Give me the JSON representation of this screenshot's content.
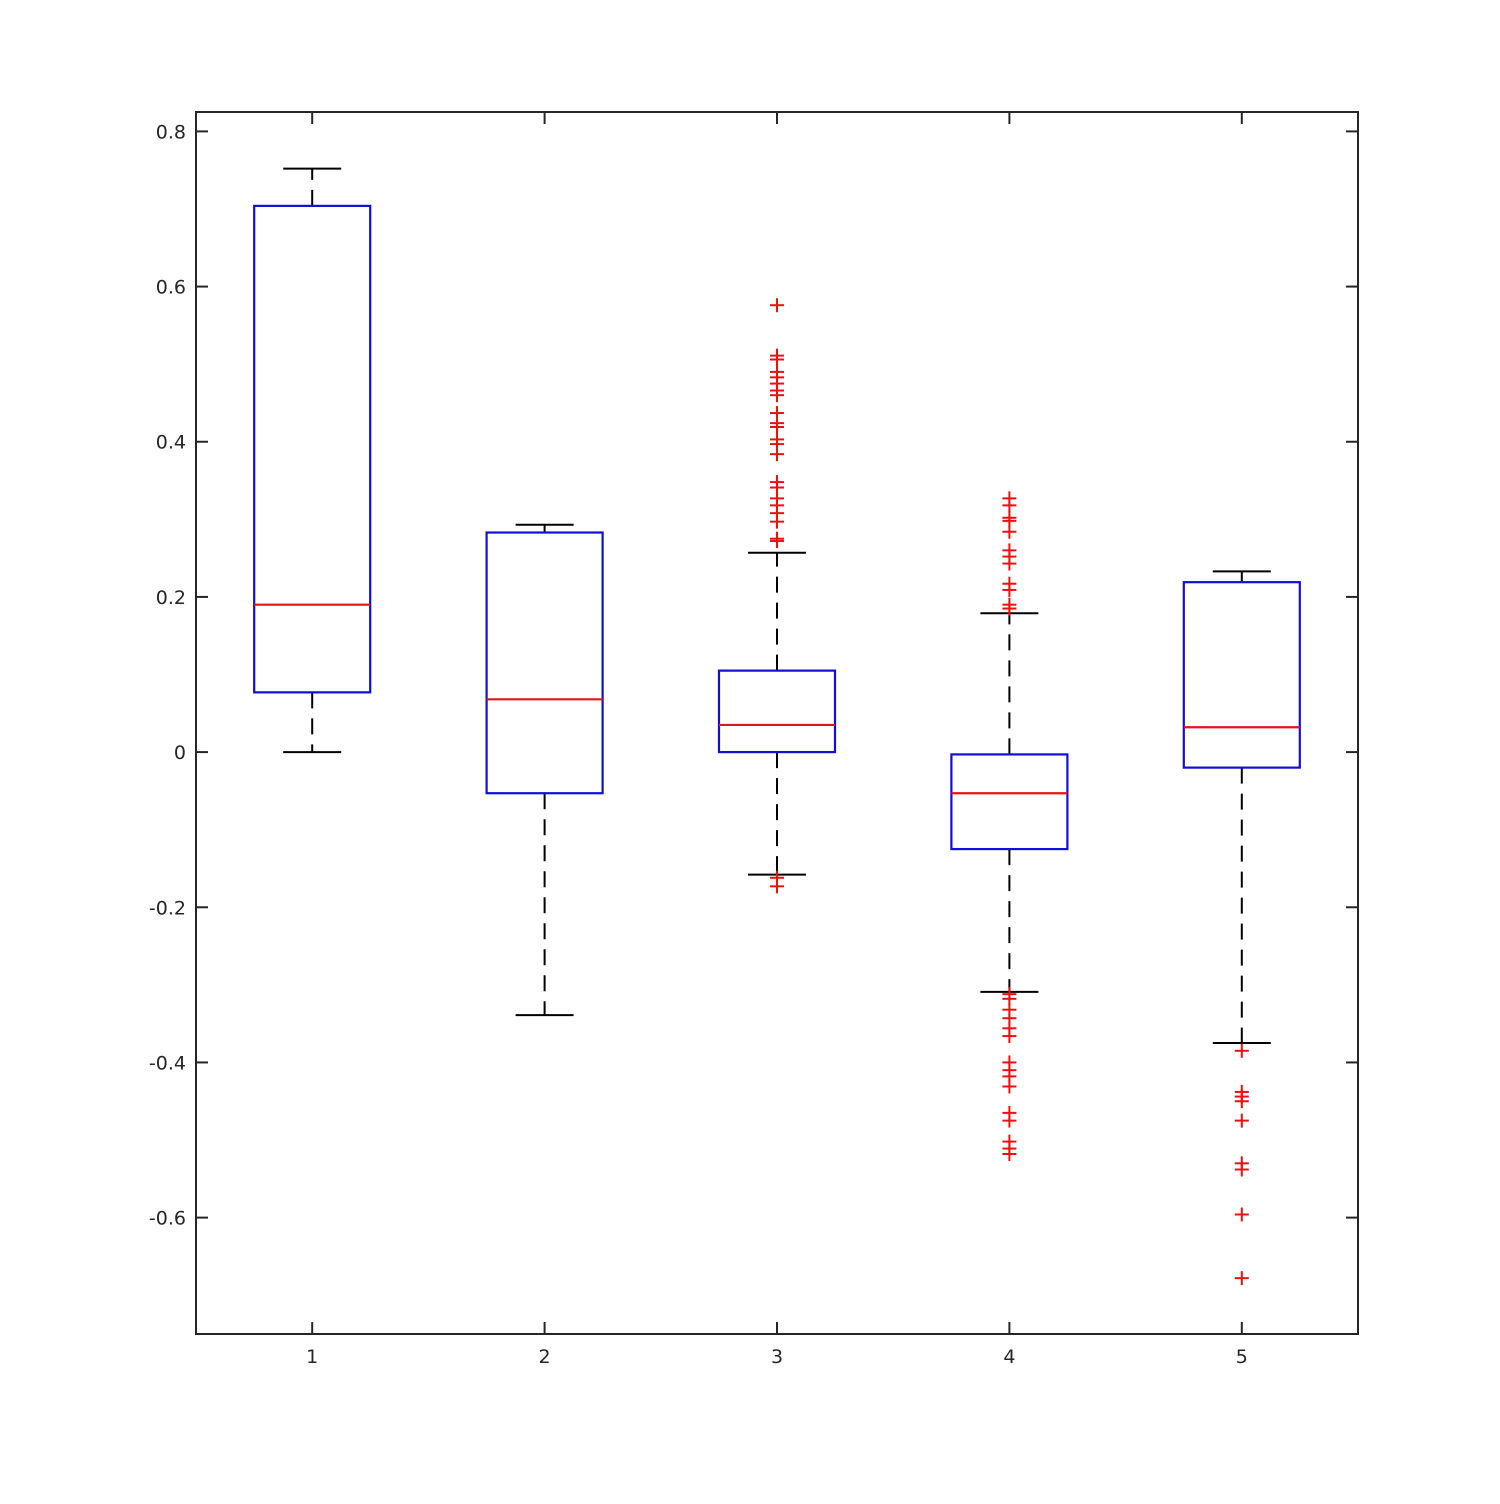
{
  "chart_data": {
    "type": "boxplot",
    "title": "",
    "xlabel": "",
    "ylabel": "",
    "ylim": [
      -0.75,
      0.825
    ],
    "xlim": [
      0.5,
      5.5
    ],
    "yticks": [
      -0.6,
      -0.4,
      -0.2,
      0,
      0.2,
      0.4,
      0.6,
      0.8
    ],
    "ytick_labels": [
      "-0.6",
      "-0.4",
      "-0.2",
      "0",
      "0.2",
      "0.4",
      "0.6",
      "0.8"
    ],
    "categories": [
      "1",
      "2",
      "3",
      "4",
      "5"
    ],
    "boxes": [
      {
        "label": "1",
        "whisker_low": 0.0,
        "q1": 0.077,
        "median": 0.19,
        "q3": 0.704,
        "whisker_high": 0.752,
        "outliers": []
      },
      {
        "label": "2",
        "whisker_low": -0.339,
        "q1": -0.053,
        "median": 0.068,
        "q3": 0.283,
        "whisker_high": 0.293,
        "outliers": []
      },
      {
        "label": "3",
        "whisker_low": -0.158,
        "q1": 0.0,
        "median": 0.035,
        "q3": 0.105,
        "whisker_high": 0.257,
        "outliers": [
          0.576,
          0.511,
          0.506,
          0.49,
          0.483,
          0.475,
          0.466,
          0.46,
          0.437,
          0.424,
          0.419,
          0.403,
          0.397,
          0.384,
          0.348,
          0.341,
          0.327,
          0.318,
          0.308,
          0.297,
          0.275,
          0.272,
          -0.162,
          -0.173
        ]
      },
      {
        "label": "4",
        "whisker_low": -0.309,
        "q1": -0.125,
        "median": -0.053,
        "q3": -0.003,
        "whisker_high": 0.179,
        "outliers": [
          0.327,
          0.318,
          0.302,
          0.298,
          0.284,
          0.26,
          0.252,
          0.243,
          0.217,
          0.209,
          0.19,
          0.185,
          -0.312,
          -0.318,
          -0.332,
          -0.343,
          -0.356,
          -0.366,
          -0.4,
          -0.41,
          -0.418,
          -0.431,
          -0.465,
          -0.475,
          -0.502,
          -0.511,
          -0.518
        ]
      },
      {
        "label": "5",
        "whisker_low": -0.375,
        "q1": -0.02,
        "median": 0.032,
        "q3": 0.219,
        "whisker_high": 0.233,
        "outliers": [
          -0.385,
          -0.438,
          -0.444,
          -0.45,
          -0.475,
          -0.53,
          -0.538,
          -0.596,
          -0.678
        ]
      }
    ],
    "colors": {
      "box": "#1010d0",
      "median": "#e0151a",
      "whisker": "#000000",
      "outlier": "#ee1010",
      "axis": "#262626"
    },
    "grid": false
  }
}
